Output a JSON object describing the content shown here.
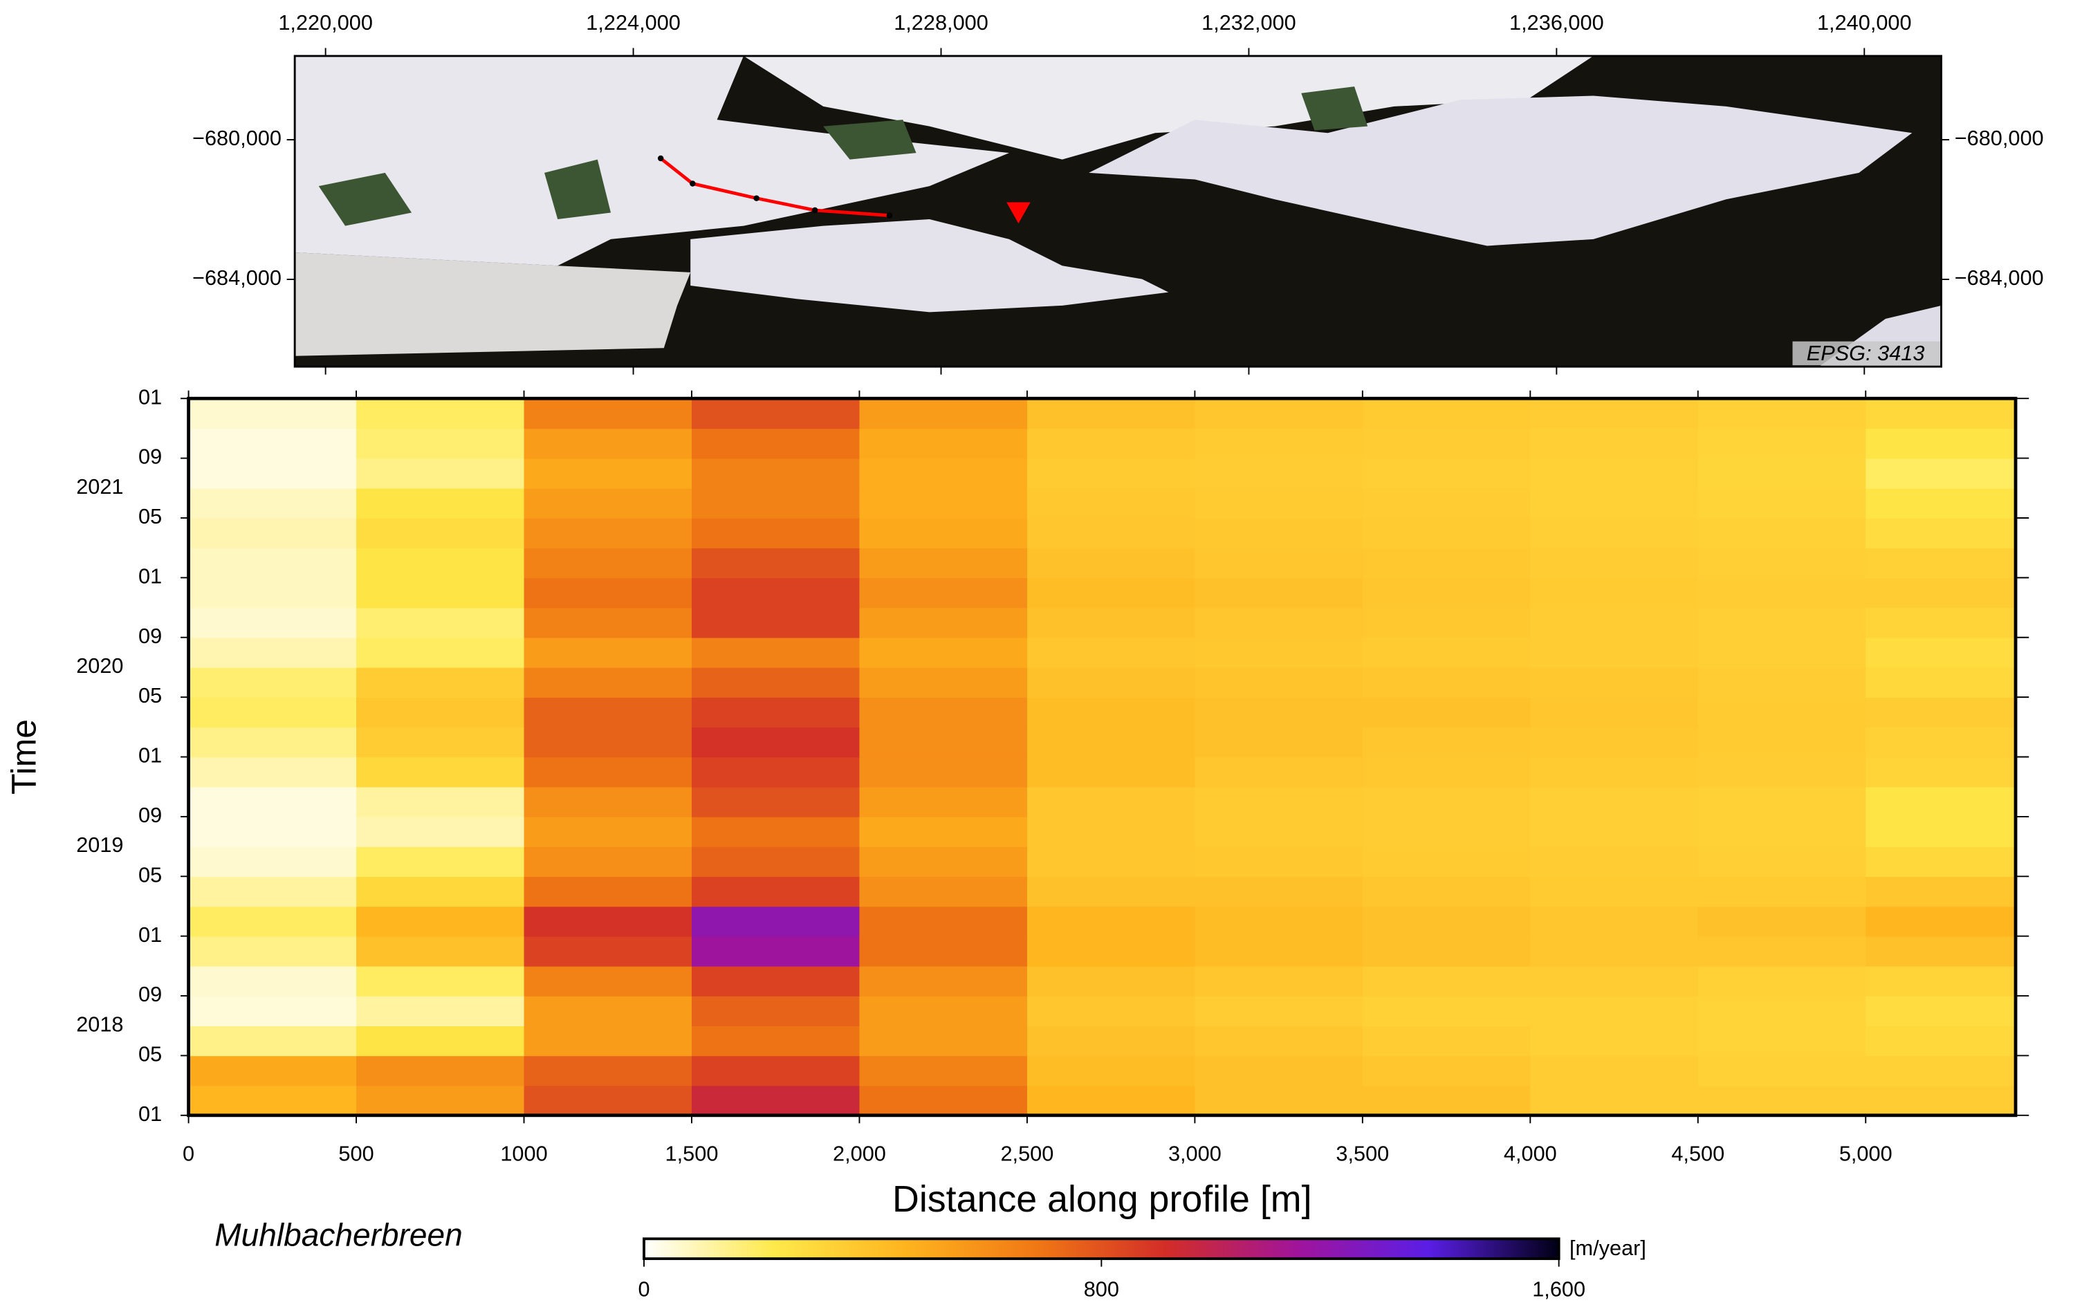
{
  "chart_data": [
    {
      "type": "map",
      "xlim": [
        1219600,
        1241000
      ],
      "ylim": [
        -686500,
        -677600
      ],
      "xticks": [
        {
          "value": 1220000,
          "label": "1,220,000"
        },
        {
          "value": 1224000,
          "label": "1,224,000"
        },
        {
          "value": 1228000,
          "label": "1,228,000"
        },
        {
          "value": 1232000,
          "label": "1,232,000"
        },
        {
          "value": 1236000,
          "label": "1,236,000"
        },
        {
          "value": 1240000,
          "label": "1,240,000"
        }
      ],
      "yticks": [
        {
          "value": -680000,
          "label": "−680,000"
        },
        {
          "value": -684000,
          "label": "−684,000"
        }
      ],
      "profile": {
        "color": "#ff0000",
        "x": [
          1224356,
          1224771,
          1225601,
          1226361,
          1227329
        ],
        "y": [
          -680533,
          -681257,
          -681676,
          -682019,
          -682171
        ]
      },
      "marker": {
        "color": "#ff0000",
        "x": 1229006,
        "y": -682095
      },
      "annotation": "EPSG: 3413"
    },
    {
      "type": "heatmap",
      "title": "Muhlbacherbreen",
      "x_label": "Distance along profile [m]",
      "y_label": "Time",
      "xlim": [
        0,
        5447
      ],
      "xticks": [
        0,
        500,
        1000,
        {
          "value": 1500,
          "label": "1,500"
        },
        {
          "value": 2000,
          "label": "2,000"
        },
        {
          "value": 2500,
          "label": "2,500"
        },
        {
          "value": 3000,
          "label": "3,000"
        },
        {
          "value": 3500,
          "label": "3,500"
        },
        {
          "value": 4000,
          "label": "4,000"
        },
        {
          "value": 4500,
          "label": "4,500"
        },
        {
          "value": 5000,
          "label": "5,000"
        }
      ],
      "ylim": [
        "2018-01",
        "2022-01"
      ],
      "yticks": [
        {
          "value": "2018-01",
          "label": "01"
        },
        {
          "value": "2018-05",
          "label": "05"
        },
        {
          "value": "2018-09",
          "label": "09"
        },
        {
          "value": "2019-01",
          "label": "01"
        },
        {
          "value": "2019-05",
          "label": "05"
        },
        {
          "value": "2019-09",
          "label": "09"
        },
        {
          "value": "2020-01",
          "label": "01"
        },
        {
          "value": "2020-05",
          "label": "05"
        },
        {
          "value": "2020-09",
          "label": "09"
        },
        {
          "value": "2021-01",
          "label": "01"
        },
        {
          "value": "2021-05",
          "label": "05"
        },
        {
          "value": "2021-09",
          "label": "09"
        },
        {
          "value": "2022-01",
          "label": "01"
        }
      ],
      "year_labels": [
        2018,
        2019,
        2020,
        2021
      ],
      "x_edges": [
        0,
        500,
        1000,
        1500,
        2000,
        2500,
        3000,
        3500,
        4000,
        4500,
        5000,
        5447
      ],
      "y_edges": [
        "2018-01",
        "2018-03",
        "2018-05",
        "2018-07",
        "2018-09",
        "2018-11",
        "2019-01",
        "2019-03",
        "2019-05",
        "2019-07",
        "2019-09",
        "2019-11",
        "2020-01",
        "2020-03",
        "2020-05",
        "2020-07",
        "2020-09",
        "2020-11",
        "2021-01",
        "2021-03",
        "2021-05",
        "2021-07",
        "2021-09",
        "2021-11",
        "2022-01"
      ],
      "values": [
        [
          450,
          550,
          800,
          950,
          700,
          450,
          400,
          400,
          350,
          350,
          350
        ],
        [
          500,
          600,
          750,
          850,
          650,
          420,
          400,
          380,
          350,
          330,
          330
        ],
        [
          150,
          250,
          550,
          700,
          550,
          400,
          380,
          350,
          330,
          320,
          300
        ],
        [
          50,
          120,
          550,
          750,
          550,
          380,
          350,
          330,
          330,
          320,
          280
        ],
        [
          60,
          200,
          650,
          850,
          600,
          400,
          380,
          350,
          350,
          330,
          320
        ],
        [
          150,
          400,
          850,
          1150,
          700,
          450,
          420,
          400,
          380,
          380,
          400
        ],
        [
          200,
          450,
          900,
          1200,
          700,
          450,
          420,
          400,
          380,
          400,
          450
        ],
        [
          120,
          300,
          700,
          850,
          600,
          400,
          400,
          380,
          360,
          360,
          380
        ],
        [
          60,
          200,
          600,
          750,
          550,
          380,
          370,
          360,
          350,
          340,
          300
        ],
        [
          40,
          100,
          550,
          700,
          500,
          380,
          360,
          350,
          340,
          330,
          250
        ],
        [
          40,
          120,
          600,
          800,
          550,
          380,
          360,
          350,
          340,
          330,
          250
        ],
        [
          100,
          300,
          700,
          850,
          600,
          420,
          380,
          370,
          360,
          350,
          320
        ],
        [
          150,
          350,
          750,
          900,
          600,
          420,
          400,
          380,
          370,
          360,
          330
        ],
        [
          200,
          380,
          750,
          850,
          600,
          420,
          400,
          400,
          380,
          360,
          350
        ],
        [
          180,
          350,
          650,
          750,
          550,
          400,
          390,
          380,
          370,
          350,
          300
        ],
        [
          100,
          200,
          550,
          650,
          500,
          380,
          370,
          360,
          350,
          340,
          280
        ],
        [
          60,
          180,
          650,
          850,
          550,
          400,
          380,
          370,
          350,
          340,
          320
        ],
        [
          80,
          250,
          700,
          850,
          600,
          420,
          400,
          380,
          360,
          350,
          350
        ],
        [
          80,
          250,
          650,
          800,
          550,
          400,
          380,
          370,
          350,
          340,
          330
        ],
        [
          100,
          280,
          600,
          700,
          500,
          380,
          370,
          360,
          340,
          330,
          280
        ],
        [
          80,
          250,
          550,
          650,
          480,
          370,
          360,
          350,
          330,
          320,
          250
        ],
        [
          40,
          150,
          500,
          650,
          480,
          360,
          350,
          340,
          330,
          310,
          200
        ],
        [
          40,
          180,
          550,
          700,
          500,
          370,
          360,
          350,
          340,
          320,
          250
        ],
        [
          60,
          200,
          650,
          800,
          550,
          400,
          380,
          360,
          350,
          330,
          300
        ]
      ],
      "colorbar": {
        "label": "[m/year]",
        "lim": [
          0,
          1600
        ],
        "ticks": [
          0,
          800,
          {
            "value": 1600,
            "label": "1,600"
          }
        ],
        "colors": [
          "#ffffff",
          "#ffe94a",
          "#ffb41e",
          "#f07814",
          "#d22d28",
          "#a0149b",
          "#5a1ee6",
          "#000014"
        ]
      }
    }
  ]
}
